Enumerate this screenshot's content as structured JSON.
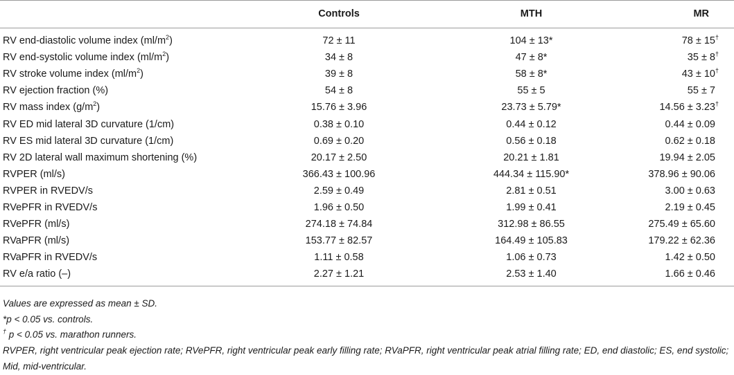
{
  "table": {
    "headers": [
      "",
      "Controls",
      "MTH",
      "MR"
    ],
    "rows": [
      {
        "label": "RV end-diastolic volume index (ml/m",
        "sup": "2",
        "label_end": ")",
        "controls": "72 ± 11",
        "mth": "104 ± 13*",
        "mr": "78 ± 15",
        "mr_mark": "†"
      },
      {
        "label": "RV end-systolic volume index (ml/m",
        "sup": "2",
        "label_end": ")",
        "controls": "34 ± 8",
        "mth": "47 ± 8*",
        "mr": "35 ± 8",
        "mr_mark": "†"
      },
      {
        "label": "RV stroke volume index (ml/m",
        "sup": "2",
        "label_end": ")",
        "controls": "39 ± 8",
        "mth": "58 ± 8*",
        "mr": "43 ± 10",
        "mr_mark": "†"
      },
      {
        "label": "RV ejection fraction (%)",
        "sup": "",
        "label_end": "",
        "controls": "54 ± 8",
        "mth": "55 ± 5",
        "mr": "55 ± 7",
        "mr_mark": ""
      },
      {
        "label": "RV mass index (g/m",
        "sup": "2",
        "label_end": ")",
        "controls": "15.76 ± 3.96",
        "mth": "23.73 ± 5.79*",
        "mr": "14.56 ± 3.23",
        "mr_mark": "†"
      },
      {
        "label": "RV ED mid lateral 3D curvature (1/cm)",
        "sup": "",
        "label_end": "",
        "controls": "0.38 ± 0.10",
        "mth": "0.44 ± 0.12",
        "mr": "0.44 ± 0.09",
        "mr_mark": ""
      },
      {
        "label": "RV ES mid lateral 3D curvature (1/cm)",
        "sup": "",
        "label_end": "",
        "controls": "0.69 ± 0.20",
        "mth": "0.56 ± 0.18",
        "mr": "0.62 ± 0.18",
        "mr_mark": ""
      },
      {
        "label": "RV 2D lateral wall maximum shortening (%)",
        "sup": "",
        "label_end": "",
        "controls": "20.17 ± 2.50",
        "mth": "20.21 ± 1.81",
        "mr": "19.94 ± 2.05",
        "mr_mark": ""
      },
      {
        "label": "RVPER (ml/s)",
        "sup": "",
        "label_end": "",
        "controls": "366.43 ± 100.96",
        "mth": "444.34 ± 115.90*",
        "mr": "378.96 ± 90.06",
        "mr_mark": ""
      },
      {
        "label": "RVPER in RVEDV/s",
        "sup": "",
        "label_end": "",
        "controls": "2.59 ± 0.49",
        "mth": "2.81 ± 0.51",
        "mr": "3.00 ± 0.63",
        "mr_mark": ""
      },
      {
        "label": "RVePFR in RVEDV/s",
        "sup": "",
        "label_end": "",
        "controls": "1.96 ± 0.50",
        "mth": "1.99 ± 0.41",
        "mr": "2.19 ± 0.45",
        "mr_mark": ""
      },
      {
        "label": "RVePFR (ml/s)",
        "sup": "",
        "label_end": "",
        "controls": "274.18 ± 74.84",
        "mth": "312.98 ± 86.55",
        "mr": "275.49 ± 65.60",
        "mr_mark": ""
      },
      {
        "label": "RVaPFR (ml/s)",
        "sup": "",
        "label_end": "",
        "controls": "153.77 ± 82.57",
        "mth": "164.49 ± 105.83",
        "mr": "179.22 ± 62.36",
        "mr_mark": ""
      },
      {
        "label": "RVaPFR in RVEDV/s",
        "sup": "",
        "label_end": "",
        "controls": "1.11 ± 0.58",
        "mth": "1.06 ± 0.73",
        "mr": "1.42 ± 0.50",
        "mr_mark": ""
      },
      {
        "label": "RV e/a ratio (–)",
        "sup": "",
        "label_end": "",
        "controls": "2.27 ± 1.21",
        "mth": "2.53 ± 1.40",
        "mr": "1.66 ± 0.46",
        "mr_mark": ""
      }
    ]
  },
  "footnotes": {
    "values": "Values are expressed as mean ± SD.",
    "p_controls": "*p < 0.05 vs. controls.",
    "p_marathon_mark": "†",
    "p_marathon": "p < 0.05 vs. marathon runners.",
    "abbreviations": "RVPER, right ventricular peak ejection rate; RVePFR, right ventricular peak early filling rate; RVaPFR, right ventricular peak atrial filling rate; ED, end diastolic; ES, end systolic; Mid, mid-ventricular."
  }
}
